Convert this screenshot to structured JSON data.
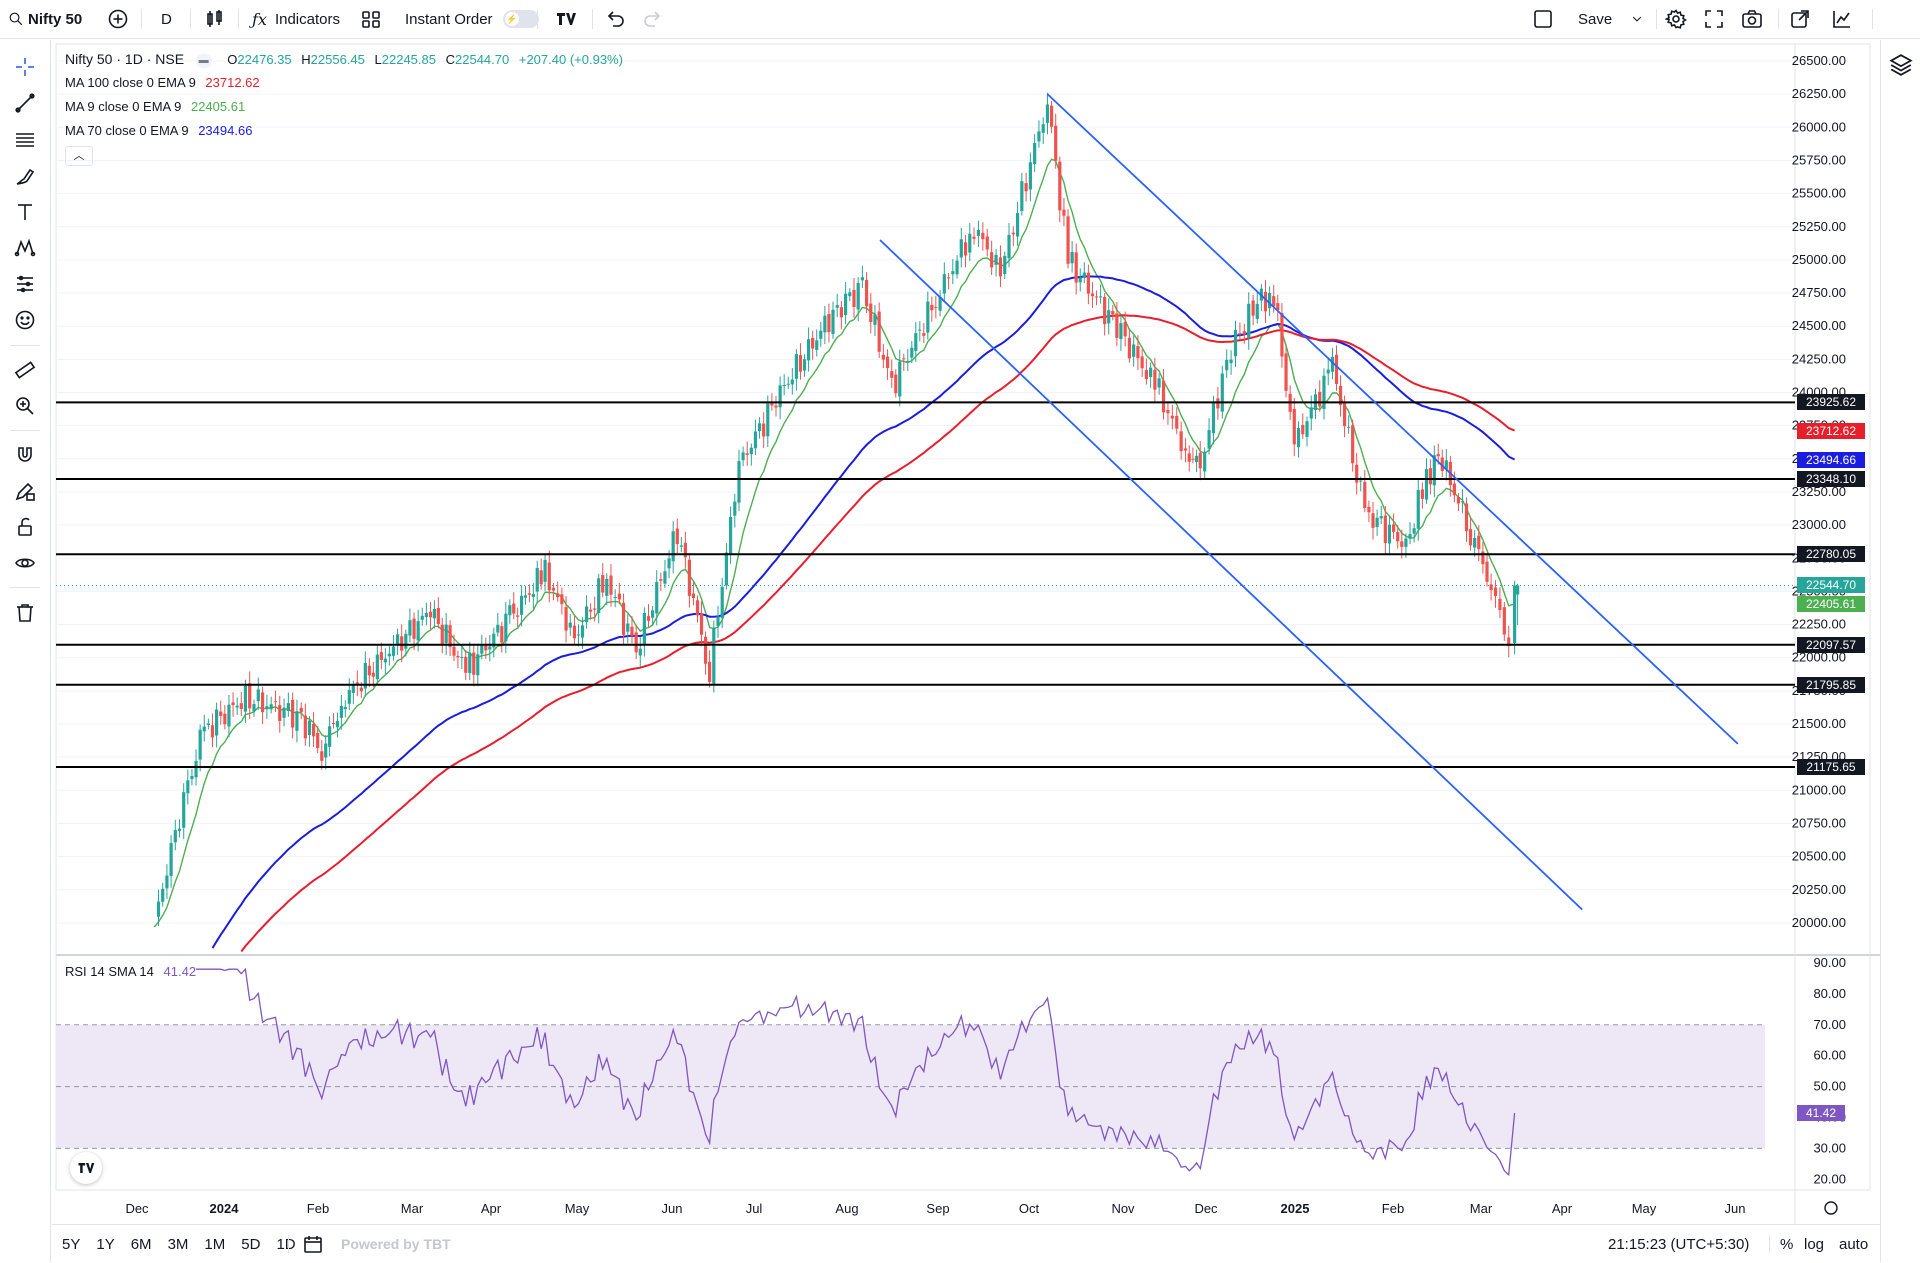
{
  "toolbar": {
    "symbol": "Nifty 50",
    "interval": "D",
    "indicators_label": "Indicators",
    "instant_order_label": "Instant Order",
    "save_label": "Save"
  },
  "legend": {
    "title": "Nifty 50 · 1D · NSE",
    "o_label": "O",
    "o_value": "22476.35",
    "h_label": "H",
    "h_value": "22556.45",
    "l_label": "L",
    "l_value": "22245.85",
    "c_label": "C",
    "c_value": "22544.70",
    "change": "+207.40 (+0.93%)",
    "indicators": [
      {
        "name": "MA 100 close 0 EMA 9",
        "value": "23712.62",
        "color": "#e91e2b"
      },
      {
        "name": "MA 9 close 0 EMA 9",
        "value": "22405.61",
        "color": "#4caf50"
      },
      {
        "name": "MA 70 close 0 EMA 9",
        "value": "23494.66",
        "color": "#1a1de0"
      }
    ]
  },
  "rsi_legend": {
    "name": "RSI 14 SMA 14",
    "value": "41.42"
  },
  "price_axis": [
    "26500.00",
    "26250.00",
    "26000.00",
    "25750.00",
    "25500.00",
    "25250.00",
    "25000.00",
    "24750.00",
    "24500.00",
    "24250.00",
    "24000.00",
    "23750.00",
    "23500.00",
    "23250.00",
    "23000.00",
    "22750.00",
    "22500.00",
    "22250.00",
    "22000.00",
    "21750.00",
    "21500.00",
    "21250.00",
    "21000.00",
    "20750.00",
    "20500.00",
    "20250.00",
    "20000.00"
  ],
  "rsi_axis": [
    "90.00",
    "80.00",
    "70.00",
    "60.00",
    "50.00",
    "40.00",
    "30.00",
    "20.00"
  ],
  "time_axis": [
    {
      "label": "Dec",
      "bold": false
    },
    {
      "label": "2024",
      "bold": true
    },
    {
      "label": "Feb",
      "bold": false
    },
    {
      "label": "Mar",
      "bold": false
    },
    {
      "label": "Apr",
      "bold": false
    },
    {
      "label": "May",
      "bold": false
    },
    {
      "label": "Jun",
      "bold": false
    },
    {
      "label": "Jul",
      "bold": false
    },
    {
      "label": "Aug",
      "bold": false
    },
    {
      "label": "Sep",
      "bold": false
    },
    {
      "label": "Oct",
      "bold": false
    },
    {
      "label": "Nov",
      "bold": false
    },
    {
      "label": "Dec",
      "bold": false
    },
    {
      "label": "2025",
      "bold": true
    },
    {
      "label": "Feb",
      "bold": false
    },
    {
      "label": "Mar",
      "bold": false
    },
    {
      "label": "Apr",
      "bold": false
    },
    {
      "label": "May",
      "bold": false
    },
    {
      "label": "Jun",
      "bold": false
    }
  ],
  "horizontal_levels": [
    "23925.62",
    "23348.10",
    "22780.05",
    "22097.57",
    "21795.85",
    "21175.65"
  ],
  "price_tags": [
    {
      "text": "23925.62",
      "color": "#131722"
    },
    {
      "text": "23712.62",
      "color": "#e91e2b"
    },
    {
      "text": "23494.66",
      "color": "#1a1de0"
    },
    {
      "text": "23348.10",
      "color": "#131722"
    },
    {
      "text": "22780.05",
      "color": "#131722"
    },
    {
      "text": "22544.70",
      "color": "#26a69a"
    },
    {
      "text": "22405.61",
      "color": "#4caf50"
    },
    {
      "text": "22097.57",
      "color": "#131722"
    },
    {
      "text": "21795.85",
      "color": "#131722"
    },
    {
      "text": "21175.65",
      "color": "#131722"
    }
  ],
  "rsi_tag": {
    "text": "41.42",
    "color": "#7e57c2"
  },
  "bottom": {
    "ranges": [
      "5Y",
      "1Y",
      "6M",
      "3M",
      "1M",
      "5D",
      "1D"
    ],
    "powered_by": "Powered by TBT",
    "clock": "21:15:23 (UTC+5:30)",
    "percent": "%",
    "log": "log",
    "auto": "auto"
  },
  "colors": {
    "up": "#26a69a",
    "down": "#ef5350",
    "ma100": "#e91e2b",
    "ma9": "#4caf50",
    "ma70": "#1a1de0",
    "channel": "#2962ff",
    "rsi": "#7e57c2",
    "rsi_band": "#ede7f6"
  },
  "chart_data": {
    "type": "candlestick",
    "symbol": "Nifty 50",
    "interval": "1D",
    "close_path": [
      [
        "2023-11-28",
        20000
      ],
      [
        "2023-12-08",
        20950
      ],
      [
        "2023-12-15",
        21450
      ],
      [
        "2023-12-29",
        21700
      ],
      [
        "2024-01-17",
        21550
      ],
      [
        "2024-01-24",
        21300
      ],
      [
        "2024-02-01",
        21700
      ],
      [
        "2024-02-16",
        22050
      ],
      [
        "2024-03-01",
        22350
      ],
      [
        "2024-03-13",
        21900
      ],
      [
        "2024-03-28",
        22300
      ],
      [
        "2024-04-09",
        22650
      ],
      [
        "2024-04-19",
        22150
      ],
      [
        "2024-04-30",
        22600
      ],
      [
        "2024-05-10",
        22050
      ],
      [
        "2024-05-24",
        22950
      ],
      [
        "2024-06-04",
        21900
      ],
      [
        "2024-06-14",
        23450
      ],
      [
        "2024-06-28",
        24000
      ],
      [
        "2024-07-16",
        24600
      ],
      [
        "2024-07-26",
        24800
      ],
      [
        "2024-08-05",
        24050
      ],
      [
        "2024-08-20",
        24700
      ],
      [
        "2024-09-02",
        25250
      ],
      [
        "2024-09-11",
        24900
      ],
      [
        "2024-09-27",
        26200
      ],
      [
        "2024-10-04",
        25000
      ],
      [
        "2024-10-22",
        24450
      ],
      [
        "2024-11-04",
        24000
      ],
      [
        "2024-11-13",
        23550
      ],
      [
        "2024-11-18",
        23450
      ],
      [
        "2024-11-27",
        24250
      ],
      [
        "2024-12-06",
        24650
      ],
      [
        "2024-12-13",
        24750
      ],
      [
        "2024-12-20",
        23600
      ],
      [
        "2025-01-02",
        24200
      ],
      [
        "2025-01-13",
        23100
      ],
      [
        "2025-01-27",
        22850
      ],
      [
        "2025-02-03",
        23350
      ],
      [
        "2025-02-07",
        23550
      ],
      [
        "2025-02-18",
        22950
      ],
      [
        "2025-02-25",
        22550
      ],
      [
        "2025-03-03",
        22100
      ],
      [
        "2025-03-05",
        22544.7
      ]
    ],
    "last_candle": {
      "open": 22476.35,
      "high": 22556.45,
      "low": 22245.85,
      "close": 22544.7,
      "change": 207.4,
      "change_pct": 0.93
    },
    "ma100_last": 23712.62,
    "ma9_last": 22405.61,
    "ma70_last": 23494.66,
    "rsi_last": 41.42,
    "rsi_band": [
      30,
      70
    ],
    "rsi_midline": 50,
    "support_resistance": [
      23925.62,
      23348.1,
      22780.05,
      22097.57,
      21795.85,
      21175.65
    ],
    "channel_lines": [
      {
        "from": [
          "2024-09-27",
          26250
        ],
        "to": [
          "2025-05-20",
          21350
        ]
      },
      {
        "from": [
          "2024-08-01",
          25150
        ],
        "to": [
          "2025-03-28",
          20100
        ]
      }
    ],
    "ylim": [
      19850,
      26600
    ],
    "rsi_ylim": [
      15,
      92
    ]
  }
}
